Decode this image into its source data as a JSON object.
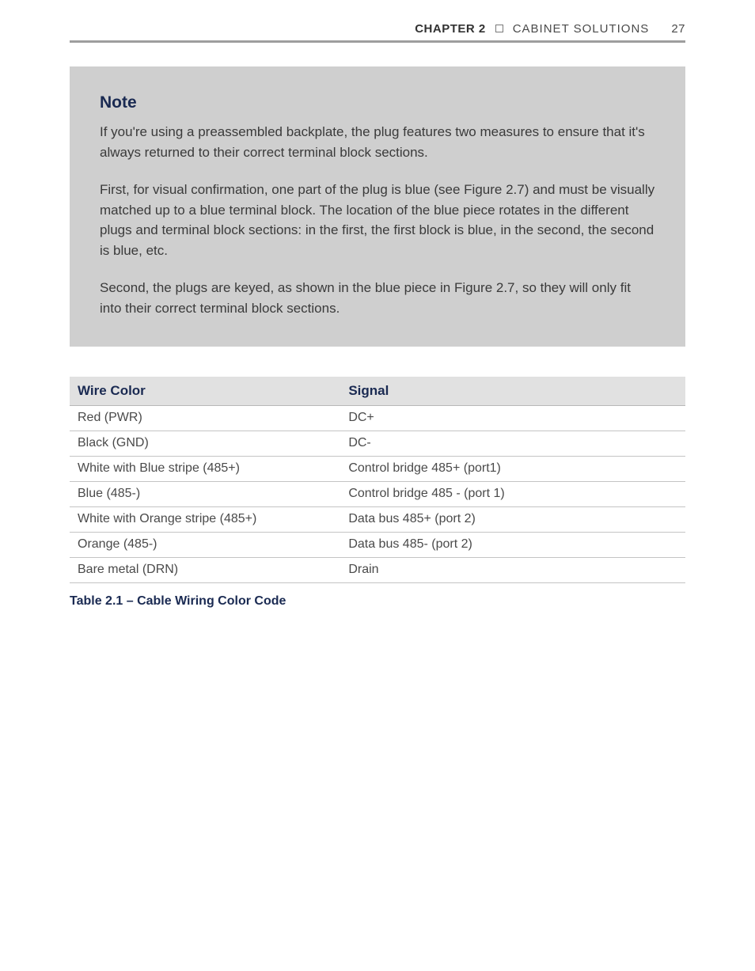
{
  "header": {
    "chapter_label": "CHAPTER 2",
    "section_label": "CABINET SOLUTIONS",
    "page_number": "27"
  },
  "note": {
    "title": "Note",
    "paragraphs": [
      "If you're using a preassembled backplate, the plug features two measures to ensure that it's always returned to their correct terminal block sections.",
      "First, for visual confirmation, one part of the plug is blue (see Figure 2.7) and must be visually matched up to a blue terminal block. The location of the blue piece rotates in the different plugs and terminal block sections: in the first, the first block is blue, in the second, the second is blue, etc.",
      "Second, the plugs are keyed, as shown in the blue piece in Figure 2.7, so they will only fit into their correct terminal block sections."
    ]
  },
  "table": {
    "columns": [
      "Wire Color",
      "Signal"
    ],
    "rows": [
      [
        "Red (PWR)",
        "DC+"
      ],
      [
        "Black (GND)",
        "DC-"
      ],
      [
        "White with Blue stripe (485+)",
        "Control bridge 485+ (port1)"
      ],
      [
        "Blue (485-)",
        "Control bridge 485 - (port 1)"
      ],
      [
        "White with Orange stripe (485+)",
        "Data bus 485+ (port 2)"
      ],
      [
        "Orange (485-)",
        "Data bus 485- (port 2)"
      ],
      [
        "Bare metal (DRN)",
        "Drain"
      ]
    ],
    "caption": "Table 2.1 – Cable Wiring Color Code",
    "header_bg": "#e1e1e1",
    "header_color": "#1a2a52",
    "border_color": "#c4c4c4",
    "col_widths_pct": [
      44,
      56
    ]
  },
  "colors": {
    "page_bg": "#ffffff",
    "note_bg": "#cfcfcf",
    "accent_navy": "#1a2a52",
    "rule_gray": "#9e9e9e",
    "body_text": "#3a3a3a"
  },
  "typography": {
    "body_fontsize_pt": 12,
    "note_title_fontsize_pt": 16,
    "table_fontsize_pt": 12,
    "caption_fontsize_pt": 12
  }
}
